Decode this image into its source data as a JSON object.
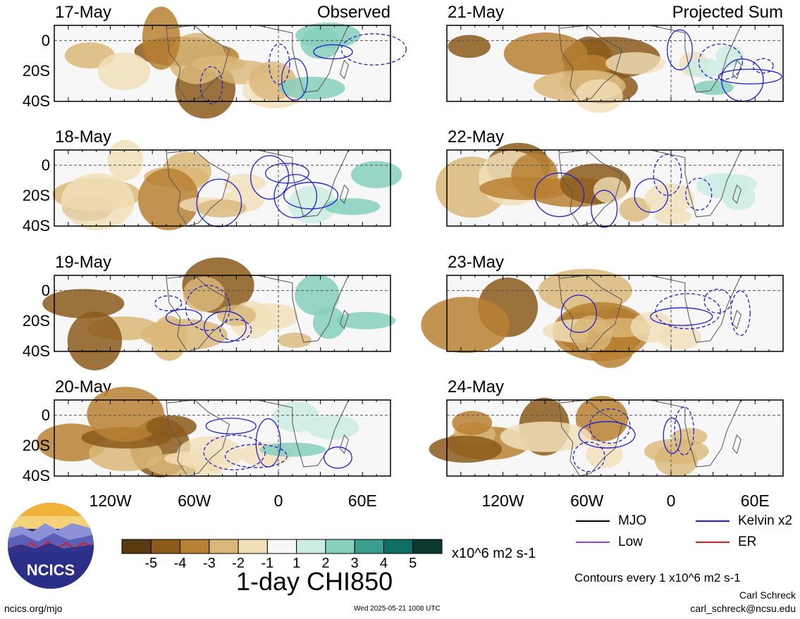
{
  "panels": [
    {
      "date": "17-May",
      "tag": "Observed",
      "column": 0,
      "row": 0
    },
    {
      "date": "18-May",
      "tag": "",
      "column": 0,
      "row": 1
    },
    {
      "date": "19-May",
      "tag": "",
      "column": 0,
      "row": 2
    },
    {
      "date": "20-May",
      "tag": "",
      "column": 0,
      "row": 3
    },
    {
      "date": "21-May",
      "tag": "Projected Sum",
      "column": 1,
      "row": 0
    },
    {
      "date": "22-May",
      "tag": "",
      "column": 1,
      "row": 1
    },
    {
      "date": "23-May",
      "tag": "",
      "column": 1,
      "row": 2
    },
    {
      "date": "24-May",
      "tag": "",
      "column": 1,
      "row": 3
    }
  ],
  "chart_data": {
    "type": "heatmap",
    "title": "1-day CHI850",
    "latitude_ticks": [
      "0",
      "20S",
      "40S"
    ],
    "longitude_ticks": [
      "120W",
      "60W",
      "0",
      "60E"
    ],
    "latitude_range": [
      -40,
      10
    ],
    "longitude_range": [
      -160,
      80
    ],
    "colorbar": {
      "ticks": [
        "-5",
        "-4",
        "-3",
        "-2",
        "-1",
        "1",
        "2",
        "3",
        "4",
        "5"
      ],
      "colors": [
        "#5a3a10",
        "#8b5a1b",
        "#b88032",
        "#d9b778",
        "#f1dfb8",
        "#f7f7f7",
        "#cdece3",
        "#86cfbd",
        "#3a9e8e",
        "#0e6e64",
        "#0a3a30"
      ],
      "units": "x10^6 m2 s-1"
    },
    "legend": [
      {
        "label": "MJO",
        "color": "#000000"
      },
      {
        "label": "Kelvin x2",
        "color": "#1f1fd0"
      },
      {
        "label": "Low",
        "color": "#a040e0"
      },
      {
        "label": "ER",
        "color": "#d02020"
      }
    ],
    "contour_note": "Contours every 1 x10^6 m2 s-1"
  },
  "footer": {
    "logo_text": "NCICS",
    "website": "ncics.org/mjo",
    "timestamp": "Wed 2025-05-21 1008 UTC",
    "author": "Carl Schreck",
    "email": "carl_schreck@ncsu.edu"
  }
}
